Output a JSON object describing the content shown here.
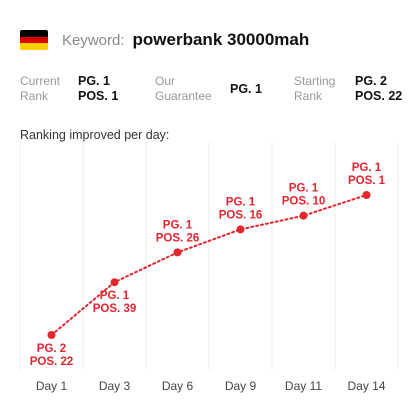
{
  "header": {
    "flag_icon": "germany-flag-icon",
    "flag_colors": [
      "#000000",
      "#dd0000",
      "#ffce00"
    ],
    "keyword_label": "Keyword:",
    "keyword_value": "powerbank 30000mah"
  },
  "stats": {
    "current_rank": {
      "label": "Current\nRank",
      "value": "PG. 1\nPOS. 1"
    },
    "our_guarantee": {
      "label": "Our\nGuarantee",
      "value": "PG. 1"
    },
    "starting_rank": {
      "label": "Starting\nRank",
      "value": "PG. 2\nPOS. 22"
    }
  },
  "chart_title": "Ranking improved per day:",
  "colors": {
    "accent": "#e3262e",
    "grid": "#eeeeee"
  },
  "chart_data": {
    "type": "line",
    "title": "Ranking improved per day:",
    "grid": true,
    "categories": [
      "Day 1",
      "Day 3",
      "Day 6",
      "Day 9",
      "Day 11",
      "Day 14"
    ],
    "series": [
      {
        "values": [
          {
            "page": 2,
            "position": 22,
            "label": [
              "PG. 2",
              "POS. 22"
            ]
          },
          {
            "page": 1,
            "position": 39,
            "label": [
              "PG. 1",
              "POS. 39"
            ]
          },
          {
            "page": 1,
            "position": 26,
            "label": [
              "PG. 1",
              "POS. 26"
            ]
          },
          {
            "page": 1,
            "position": 16,
            "label": [
              "PG. 1",
              "POS. 16"
            ]
          },
          {
            "page": 1,
            "position": 10,
            "label": [
              "PG. 1",
              "POS. 10"
            ]
          },
          {
            "page": 1,
            "position": 1,
            "label": [
              "PG. 1",
              "POS. 1"
            ]
          }
        ]
      }
    ]
  }
}
